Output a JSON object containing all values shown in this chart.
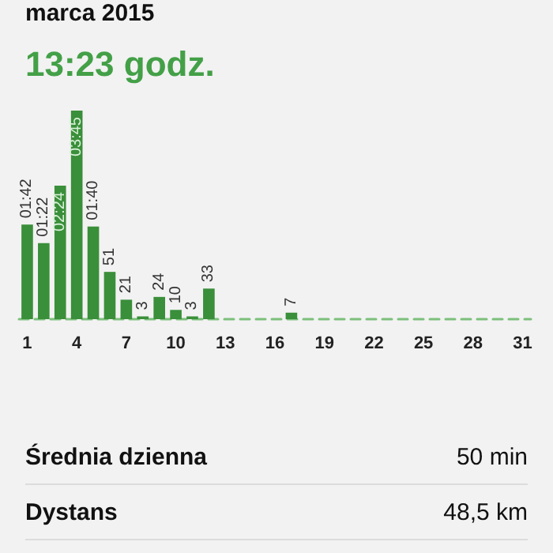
{
  "chart_data": {
    "type": "bar",
    "title": "marca 2015",
    "subtitle": "13:23 godz.",
    "categories": [
      "1",
      null,
      null,
      "4",
      null,
      null,
      "7",
      null,
      null,
      "10",
      null,
      null,
      "13",
      null,
      null,
      "16",
      null,
      null,
      "19",
      null,
      null,
      "22",
      null,
      null,
      "25",
      null,
      null,
      "28",
      null,
      null,
      "31"
    ],
    "values": [
      102,
      82,
      144,
      225,
      100,
      51,
      21,
      3,
      24,
      10,
      3,
      33,
      0,
      0,
      0,
      0,
      7,
      0,
      0,
      0,
      0,
      0,
      0,
      0,
      0,
      0,
      0,
      0,
      0,
      0,
      0
    ],
    "value_labels": [
      "01:42",
      "01:22",
      "02:24",
      "03:45",
      "01:40",
      "51",
      "21",
      "3",
      "24",
      "10",
      "3",
      "33",
      null,
      null,
      null,
      null,
      "7",
      null,
      null,
      null,
      null,
      null,
      null,
      null,
      null,
      null,
      null,
      null,
      null,
      null,
      null
    ],
    "color": "#3a8f3a",
    "annotations": [
      "Średnia dzienna",
      "50 min",
      "Dystans",
      "48,5 km"
    ]
  }
}
